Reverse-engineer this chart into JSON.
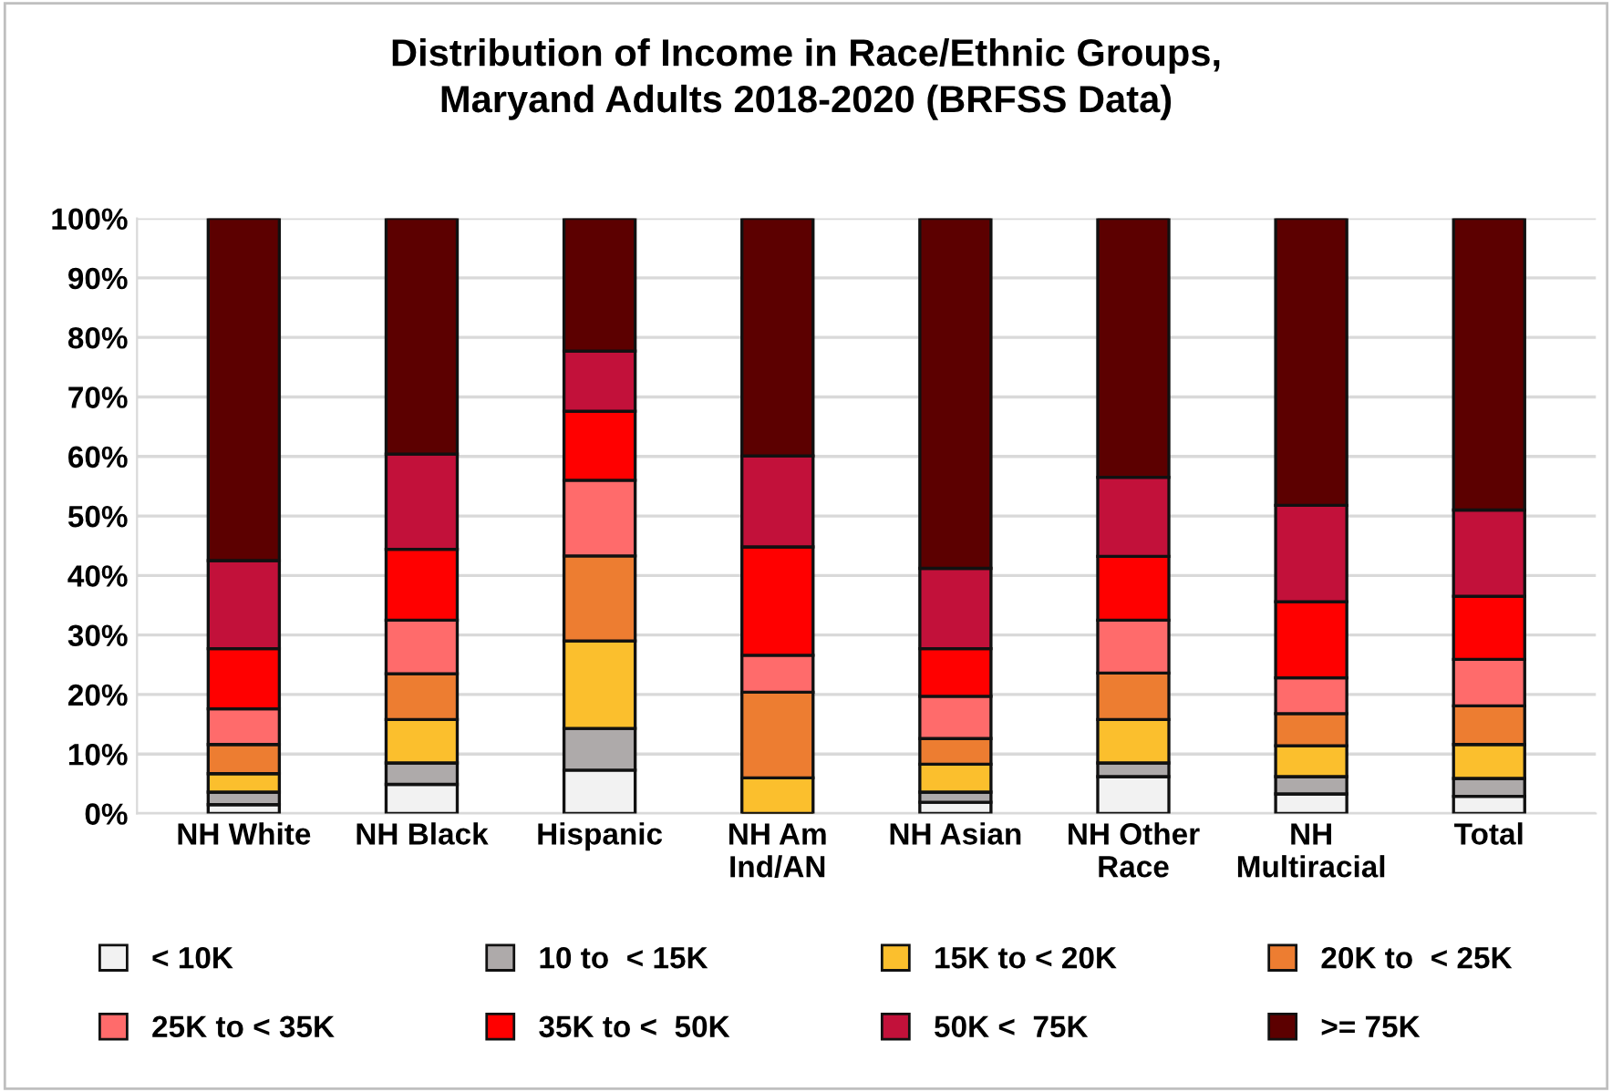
{
  "chart_data": {
    "type": "bar",
    "title": "Distribution of Income in Race/Ethnic Groups,\nMaryand Adults 2018-2020 (BRFSS Data)",
    "categories": [
      "NH White",
      "NH Black",
      "Hispanic",
      "NH Am\nInd/AN",
      "NH Asian",
      "NH Other\nRace",
      "NH\nMultiracial",
      "Total"
    ],
    "stacked": true,
    "series": [
      {
        "name": "< 10K",
        "color": "#f2f2f2",
        "values": [
          1.5,
          4.9,
          7.3,
          0,
          1.9,
          6.2,
          3.3,
          2.9
        ]
      },
      {
        "name": "10 to  < 15K",
        "color": "#aeaaaa",
        "values": [
          2.1,
          3.6,
          7.0,
          0,
          1.7,
          2.3,
          2.9,
          3.0
        ]
      },
      {
        "name": "15K to < 20K",
        "color": "#fbbf2d",
        "values": [
          3.1,
          7.3,
          14.7,
          6.0,
          4.7,
          7.3,
          5.2,
          5.7
        ]
      },
      {
        "name": "20K to  < 25K",
        "color": "#ed7d31",
        "values": [
          4.9,
          7.7,
          14.3,
          14.4,
          4.3,
          7.8,
          5.4,
          6.5
        ]
      },
      {
        "name": "25K to < 35K",
        "color": "#ff6b6b",
        "values": [
          6.0,
          9.0,
          12.7,
          6.2,
          7.1,
          8.9,
          6.0,
          7.8
        ]
      },
      {
        "name": "35K to <  50K",
        "color": "#ff0000",
        "values": [
          10.1,
          11.9,
          11.6,
          18.2,
          8.0,
          10.7,
          12.8,
          10.6
        ]
      },
      {
        "name": "50K <  75K",
        "color": "#c2113a",
        "values": [
          14.8,
          16.0,
          10.1,
          15.3,
          13.5,
          13.3,
          16.2,
          14.5
        ]
      },
      {
        "name": ">= 75K",
        "color": "#5c0000",
        "values": [
          57.5,
          39.6,
          22.3,
          39.9,
          58.8,
          43.5,
          48.2,
          49.0
        ]
      }
    ],
    "ylim": [
      0,
      100
    ],
    "yticks": [
      {
        "value": 0,
        "label": "0%"
      },
      {
        "value": 10,
        "label": "10%"
      },
      {
        "value": 20,
        "label": "20%"
      },
      {
        "value": 30,
        "label": "30%"
      },
      {
        "value": 40,
        "label": "40%"
      },
      {
        "value": 50,
        "label": "50%"
      },
      {
        "value": 60,
        "label": "60%"
      },
      {
        "value": 70,
        "label": "70%"
      },
      {
        "value": 80,
        "label": "80%"
      },
      {
        "value": 90,
        "label": "90%"
      },
      {
        "value": 100,
        "label": "100%"
      }
    ],
    "grid": "y",
    "legend": "bottom"
  }
}
